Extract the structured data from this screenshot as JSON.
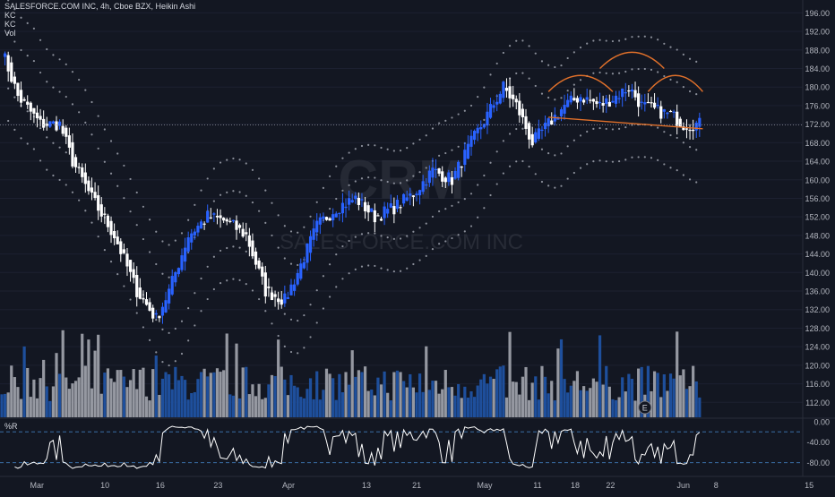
{
  "legend": {
    "title": "SALESFORCE.COM INC, 4h, Cboe BZX, Heikin Ashi",
    "ind1": "KC",
    "ind2": "KC",
    "ind3": "Vol"
  },
  "watermark": {
    "ticker": "CRM",
    "name": "SALESFORCE.COM INC"
  },
  "oscillator": {
    "label": "%R",
    "levels": [
      -20,
      -80
    ]
  },
  "event_badge": "E",
  "colors": {
    "background": "#131722",
    "up": "#2962ff",
    "down": "#ffffff",
    "vol_up": "#1e4f9c",
    "vol_down": "#9598a1",
    "pattern": "#e0702a",
    "dots": "#8a8e99",
    "osc_line": "#ffffff",
    "level_line": "#3a6ea5"
  },
  "chart_data": [
    {
      "type": "candlestick",
      "title": "SALESFORCE.COM INC, 4h, Cboe BZX, Heikin Ashi",
      "y_axis": {
        "ticks": [
          "196.00",
          "192.00",
          "188.00",
          "184.00",
          "180.00",
          "176.00",
          "172.00",
          "168.00",
          "164.00",
          "160.00",
          "156.00",
          "152.00",
          "148.00",
          "144.00",
          "140.00",
          "136.00",
          "132.00",
          "128.00",
          "124.00",
          "120.00",
          "116.00",
          "112.00"
        ],
        "ylim": [
          108,
          198
        ]
      },
      "x_axis": {
        "ticks": [
          "Mar",
          "10",
          "16",
          "23",
          "Apr",
          "13",
          "21",
          "May",
          "11",
          "18",
          "22",
          "Jun",
          "8",
          "15"
        ]
      },
      "price_line": 171.8,
      "close_path": [
        {
          "i": 0,
          "v": 188
        },
        {
          "i": 5,
          "v": 178
        },
        {
          "i": 12,
          "v": 172
        },
        {
          "i": 18,
          "v": 172
        },
        {
          "i": 22,
          "v": 164
        },
        {
          "i": 28,
          "v": 156
        },
        {
          "i": 35,
          "v": 148
        },
        {
          "i": 42,
          "v": 136
        },
        {
          "i": 48,
          "v": 130
        },
        {
          "i": 52,
          "v": 136
        },
        {
          "i": 58,
          "v": 148
        },
        {
          "i": 64,
          "v": 152
        },
        {
          "i": 70,
          "v": 151
        },
        {
          "i": 76,
          "v": 148
        },
        {
          "i": 82,
          "v": 136
        },
        {
          "i": 88,
          "v": 134
        },
        {
          "i": 92,
          "v": 140
        },
        {
          "i": 98,
          "v": 150
        },
        {
          "i": 104,
          "v": 154
        },
        {
          "i": 110,
          "v": 156
        },
        {
          "i": 116,
          "v": 152
        },
        {
          "i": 122,
          "v": 154
        },
        {
          "i": 128,
          "v": 157
        },
        {
          "i": 134,
          "v": 162
        },
        {
          "i": 140,
          "v": 160
        },
        {
          "i": 146,
          "v": 168
        },
        {
          "i": 151,
          "v": 174
        },
        {
          "i": 156,
          "v": 180
        },
        {
          "i": 160,
          "v": 176
        },
        {
          "i": 165,
          "v": 168
        },
        {
          "i": 170,
          "v": 172
        },
        {
          "i": 175,
          "v": 176
        },
        {
          "i": 180,
          "v": 178
        },
        {
          "i": 186,
          "v": 176
        },
        {
          "i": 191,
          "v": 178
        },
        {
          "i": 195,
          "v": 180
        },
        {
          "i": 199,
          "v": 176
        },
        {
          "i": 203,
          "v": 175
        },
        {
          "i": 208,
          "v": 174
        },
        {
          "i": 212,
          "v": 172
        }
      ],
      "neckline": [
        [
          170,
          173.5
        ],
        [
          218,
          171.0
        ]
      ],
      "pattern_arcs": [
        {
          "from": 170,
          "to": 190,
          "peak": 183
        },
        {
          "from": 186,
          "to": 206,
          "peak": 188
        },
        {
          "from": 201,
          "to": 218,
          "peak": 183
        }
      ]
    },
    {
      "type": "bar",
      "name": "Vol"
    },
    {
      "type": "line",
      "name": "%R",
      "ticks": [
        "0.00",
        "-40.00",
        "-80.00"
      ],
      "ylim": [
        -100,
        5
      ]
    }
  ]
}
